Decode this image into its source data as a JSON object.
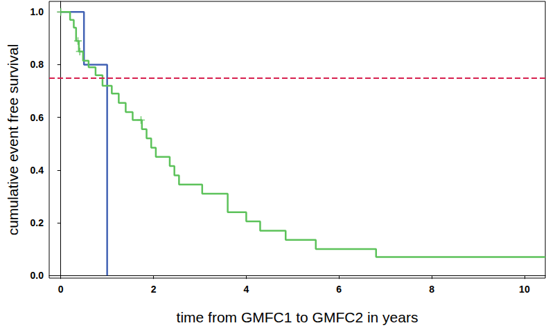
{
  "chart_data": {
    "type": "line",
    "x_label": "time from GMFC1 to GMFC2 in years",
    "y_label": "cumulative event free survival",
    "xlim": [
      -0.25,
      10.45
    ],
    "xticks": [
      0,
      2,
      4,
      6,
      8,
      10
    ],
    "ylim": [
      -0.01,
      1.04
    ],
    "yticks": [
      {
        "value": 0,
        "label": "0.0"
      },
      0.2,
      0.4,
      0.6,
      0.8,
      {
        "value": 1,
        "label": "1.0"
      }
    ],
    "grid": false,
    "series": [
      {
        "type": "step",
        "color": "#4262b4",
        "line_style": "solid",
        "x": [
          0,
          0.5,
          1.0
        ],
        "values": [
          1,
          0.8,
          0
        ]
      },
      {
        "type": "step",
        "color": "#5cc25a",
        "line_style": "solid",
        "x": [
          0,
          0.2,
          0.28,
          0.33,
          0.39,
          0.48,
          0.6,
          0.75,
          0.9,
          1.1,
          1.25,
          1.4,
          1.55,
          1.75,
          1.85,
          1.95,
          2.05,
          2.35,
          2.45,
          2.55,
          3.05,
          3.6,
          4.0,
          4.3,
          4.85,
          5.5,
          6.8,
          10.45
        ],
        "values": [
          1,
          0.97,
          0.94,
          0.89,
          0.85,
          0.815,
          0.79,
          0.76,
          0.72,
          0.69,
          0.655,
          0.62,
          0.59,
          0.555,
          0.52,
          0.485,
          0.45,
          0.415,
          0.38,
          0.345,
          0.31,
          0.24,
          0.205,
          0.17,
          0.135,
          0.1,
          0.07,
          0.07
        ]
      },
      {
        "type": "scatter",
        "color": "#5cc25a",
        "marker": "+",
        "x": [
          0,
          0.37,
          0.41,
          1.73
        ],
        "values": [
          1,
          0.89,
          0.85,
          0.59
        ]
      }
    ],
    "reference_lines": [
      {
        "y": 0.75,
        "color": "#d6204e",
        "line_style": "dashed"
      }
    ]
  }
}
